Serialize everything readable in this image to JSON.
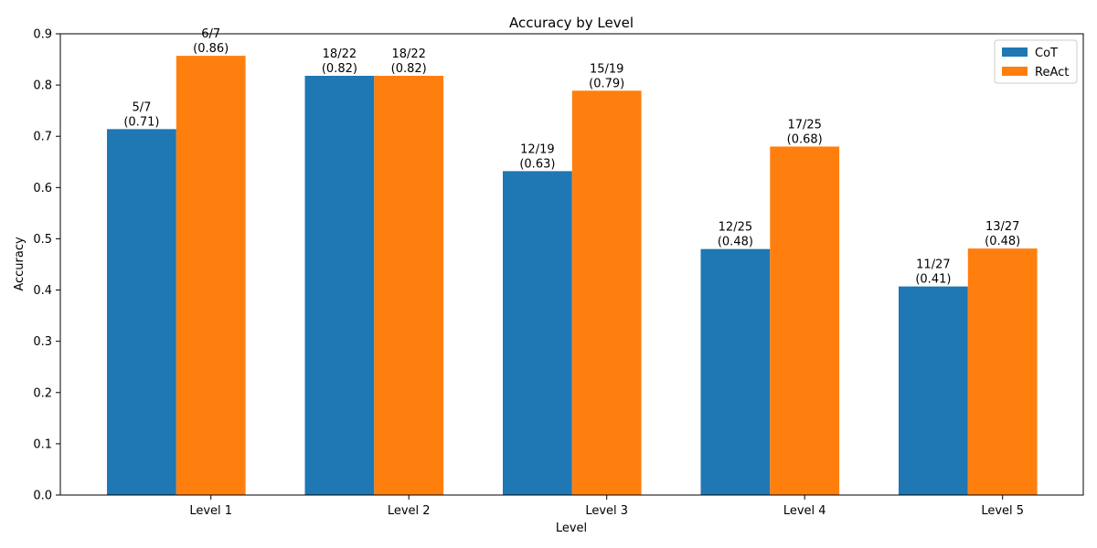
{
  "chart_data": {
    "type": "bar",
    "title": "Accuracy by Level",
    "xlabel": "Level",
    "ylabel": "Accuracy",
    "categories": [
      "Level 1",
      "Level 2",
      "Level 3",
      "Level 4",
      "Level 5"
    ],
    "ylim": [
      0,
      0.9
    ],
    "yticks": [
      "0.0",
      "0.1",
      "0.2",
      "0.3",
      "0.4",
      "0.5",
      "0.6",
      "0.7",
      "0.8",
      "0.9"
    ],
    "grid": false,
    "legend_position": "top-right",
    "series": [
      {
        "name": "CoT",
        "color": "#1f77b4",
        "values": [
          0.714,
          0.818,
          0.632,
          0.48,
          0.407
        ],
        "labels": [
          [
            "5/7",
            "(0.71)"
          ],
          [
            "18/22",
            "(0.82)"
          ],
          [
            "12/19",
            "(0.63)"
          ],
          [
            "12/25",
            "(0.48)"
          ],
          [
            "11/27",
            "(0.41)"
          ]
        ]
      },
      {
        "name": "ReAct",
        "color": "#ff7f0e",
        "values": [
          0.857,
          0.818,
          0.789,
          0.68,
          0.481
        ],
        "labels": [
          [
            "6/7",
            "(0.86)"
          ],
          [
            "18/22",
            "(0.82)"
          ],
          [
            "15/19",
            "(0.79)"
          ],
          [
            "17/25",
            "(0.68)"
          ],
          [
            "13/27",
            "(0.48)"
          ]
        ]
      }
    ]
  }
}
